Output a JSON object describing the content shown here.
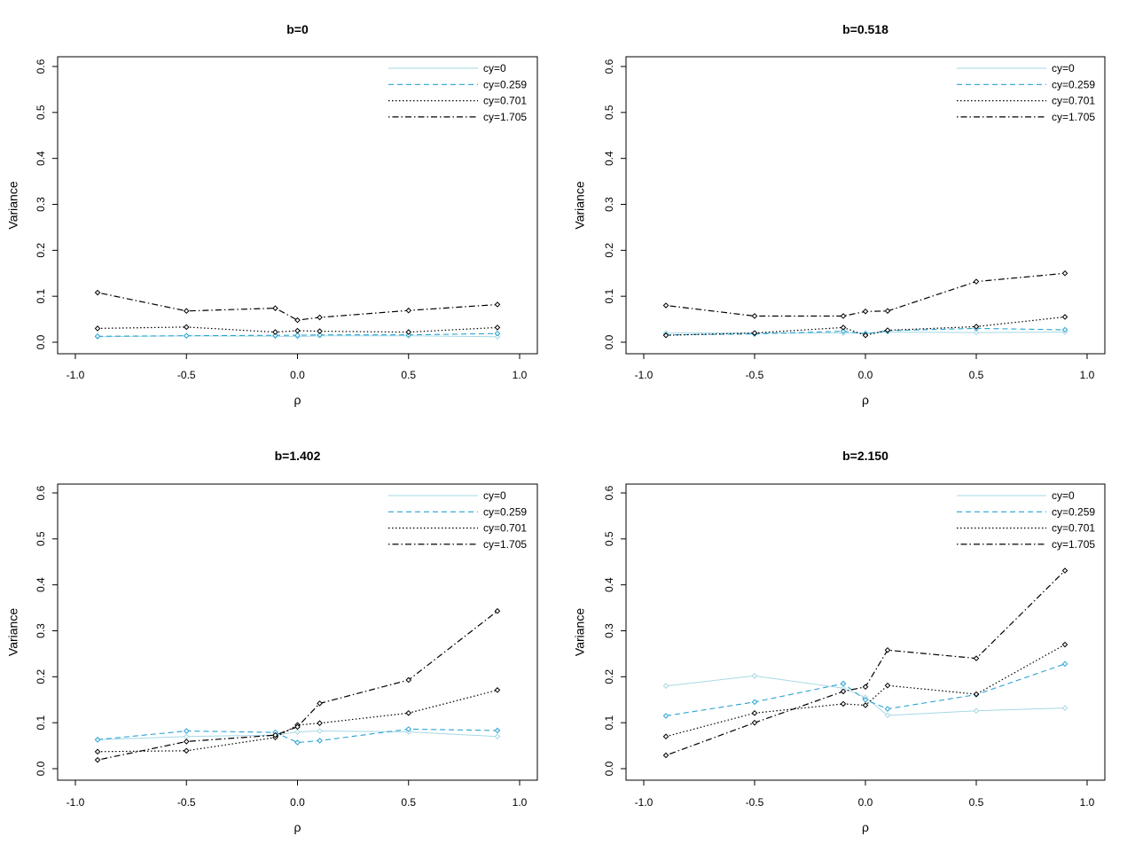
{
  "chart_data": [
    {
      "type": "line",
      "title": "b=0",
      "xlabel": "ρ",
      "ylabel": "Variance",
      "xlim": [
        -1.0,
        1.0
      ],
      "ylim": [
        0.0,
        0.6
      ],
      "xticks": [
        "-1.0",
        "-0.5",
        "0.0",
        "0.5",
        "1.0"
      ],
      "yticks": [
        "0.0",
        "0.1",
        "0.2",
        "0.3",
        "0.4",
        "0.5",
        "0.6"
      ],
      "legend_position": "top-right",
      "x": [
        -0.9,
        -0.5,
        -0.1,
        0.0,
        0.1,
        0.5,
        0.9
      ],
      "series": [
        {
          "name": "cy=0",
          "color": "#a6d8e4",
          "dash": "solid",
          "values": [
            0.012,
            0.014,
            0.013,
            0.012,
            0.014,
            0.014,
            0.012
          ]
        },
        {
          "name": "cy=0.259",
          "color": "#29a3d2",
          "dash": "dashed",
          "values": [
            0.013,
            0.014,
            0.015,
            0.015,
            0.016,
            0.016,
            0.019
          ]
        },
        {
          "name": "cy=0.701",
          "color": "#000000",
          "dash": "dotted",
          "values": [
            0.03,
            0.033,
            0.022,
            0.025,
            0.024,
            0.022,
            0.032
          ]
        },
        {
          "name": "cy=1.705",
          "color": "#000000",
          "dash": "dotdash",
          "values": [
            0.108,
            0.068,
            0.074,
            0.048,
            0.054,
            0.069,
            0.082
          ]
        }
      ]
    },
    {
      "type": "line",
      "title": "b=0.518",
      "xlabel": "ρ",
      "ylabel": "Variance",
      "xlim": [
        -1.0,
        1.0
      ],
      "ylim": [
        0.0,
        0.6
      ],
      "xticks": [
        "-1.0",
        "-0.5",
        "0.0",
        "0.5",
        "1.0"
      ],
      "yticks": [
        "0.0",
        "0.1",
        "0.2",
        "0.3",
        "0.4",
        "0.5",
        "0.6"
      ],
      "legend_position": "top-right",
      "x": [
        -0.9,
        -0.5,
        -0.1,
        0.0,
        0.1,
        0.5,
        0.9
      ],
      "series": [
        {
          "name": "cy=0",
          "color": "#a6d8e4",
          "dash": "solid",
          "values": [
            0.02,
            0.02,
            0.02,
            0.02,
            0.022,
            0.021,
            0.022
          ]
        },
        {
          "name": "cy=0.259",
          "color": "#29a3d2",
          "dash": "dashed",
          "values": [
            0.016,
            0.018,
            0.024,
            0.018,
            0.025,
            0.03,
            0.027
          ]
        },
        {
          "name": "cy=0.701",
          "color": "#000000",
          "dash": "dotted",
          "values": [
            0.015,
            0.02,
            0.032,
            0.015,
            0.026,
            0.034,
            0.055
          ]
        },
        {
          "name": "cy=1.705",
          "color": "#000000",
          "dash": "dotdash",
          "values": [
            0.08,
            0.057,
            0.057,
            0.067,
            0.068,
            0.132,
            0.15
          ]
        }
      ]
    },
    {
      "type": "line",
      "title": "b=1.402",
      "xlabel": "ρ",
      "ylabel": "Variance",
      "xlim": [
        -1.0,
        1.0
      ],
      "ylim": [
        0.0,
        0.6
      ],
      "xticks": [
        "-1.0",
        "-0.5",
        "0.0",
        "0.5",
        "1.0"
      ],
      "yticks": [
        "0.0",
        "0.1",
        "0.2",
        "0.3",
        "0.4",
        "0.5",
        "0.6"
      ],
      "legend_position": "top-right",
      "x": [
        -0.9,
        -0.5,
        -0.1,
        0.0,
        0.1,
        0.5,
        0.9
      ],
      "series": [
        {
          "name": "cy=0",
          "color": "#a6d8e4",
          "dash": "solid",
          "values": [
            0.063,
            0.07,
            0.073,
            0.08,
            0.082,
            0.08,
            0.07
          ]
        },
        {
          "name": "cy=0.259",
          "color": "#29a3d2",
          "dash": "dashed",
          "values": [
            0.063,
            0.082,
            0.079,
            0.057,
            0.061,
            0.086,
            0.083
          ]
        },
        {
          "name": "cy=0.701",
          "color": "#000000",
          "dash": "dotted",
          "values": [
            0.037,
            0.039,
            0.068,
            0.095,
            0.099,
            0.121,
            0.171
          ]
        },
        {
          "name": "cy=1.705",
          "color": "#000000",
          "dash": "dotdash",
          "values": [
            0.019,
            0.059,
            0.073,
            0.091,
            0.142,
            0.193,
            0.343
          ]
        }
      ]
    },
    {
      "type": "line",
      "title": "b=2.150",
      "xlabel": "ρ",
      "ylabel": "Variance",
      "xlim": [
        -1.0,
        1.0
      ],
      "ylim": [
        0.0,
        0.6
      ],
      "xticks": [
        "-1.0",
        "-0.5",
        "0.0",
        "0.5",
        "1.0"
      ],
      "yticks": [
        "0.0",
        "0.1",
        "0.2",
        "0.3",
        "0.4",
        "0.5",
        "0.6"
      ],
      "legend_position": "top-right",
      "x": [
        -0.9,
        -0.5,
        -0.1,
        0.0,
        0.1,
        0.5,
        0.9
      ],
      "series": [
        {
          "name": "cy=0",
          "color": "#a6d8e4",
          "dash": "solid",
          "values": [
            0.18,
            0.202,
            0.175,
            0.155,
            0.116,
            0.126,
            0.132
          ]
        },
        {
          "name": "cy=0.259",
          "color": "#29a3d2",
          "dash": "dashed",
          "values": [
            0.115,
            0.145,
            0.185,
            0.15,
            0.13,
            0.161,
            0.228
          ]
        },
        {
          "name": "cy=0.701",
          "color": "#000000",
          "dash": "dotted",
          "values": [
            0.07,
            0.121,
            0.141,
            0.138,
            0.181,
            0.162,
            0.27
          ]
        },
        {
          "name": "cy=1.705",
          "color": "#000000",
          "dash": "dotdash",
          "values": [
            0.029,
            0.1,
            0.168,
            0.178,
            0.258,
            0.24,
            0.431
          ]
        }
      ]
    }
  ]
}
